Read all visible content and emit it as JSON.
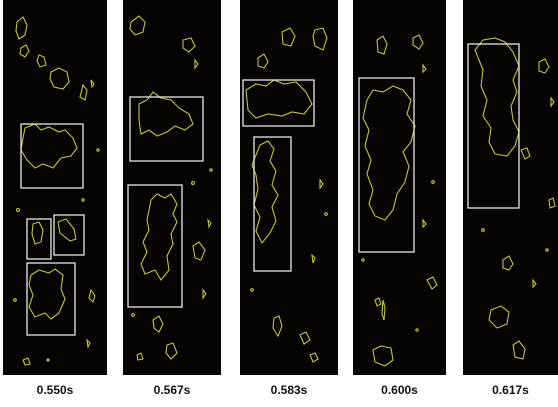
{
  "colors": {
    "background": "#050403",
    "contour": "#c8c23a",
    "box": "#e8e8e8"
  },
  "frames": [
    {
      "id": "frame-1",
      "label": "0.550s"
    },
    {
      "id": "frame-2",
      "label": "0.567s"
    },
    {
      "id": "frame-3",
      "label": "0.583s"
    },
    {
      "id": "frame-4",
      "label": "0.600s"
    },
    {
      "id": "frame-5",
      "label": "0.617s"
    }
  ]
}
